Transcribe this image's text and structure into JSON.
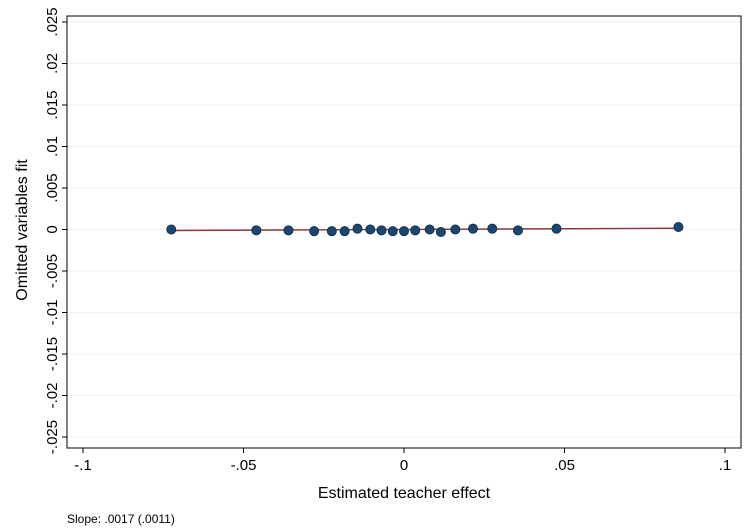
{
  "chart_data": {
    "type": "scatter",
    "title": "",
    "xlabel": "Estimated teacher effect",
    "ylabel": "Omitted variables fit",
    "xlim": [
      -0.1,
      0.1
    ],
    "ylim": [
      -0.025,
      0.025
    ],
    "x_ticks": [
      -0.1,
      -0.05,
      0,
      0.05,
      0.1
    ],
    "x_tick_labels": [
      "-.1",
      "-.05",
      "0",
      ".05",
      ".1"
    ],
    "y_ticks": [
      -0.025,
      -0.02,
      -0.015,
      -0.01,
      -0.005,
      0,
      0.005,
      0.01,
      0.015,
      0.02,
      0.025
    ],
    "y_tick_labels": [
      "-.025",
      "-.02",
      "-.015",
      "-.01",
      "-.005",
      "0",
      ".005",
      ".01",
      ".015",
      ".02",
      ".025"
    ],
    "grid": true,
    "legend": "none",
    "series": [
      {
        "kind": "points",
        "color": "#1a476f",
        "x": [
          -0.0725,
          -0.046,
          -0.036,
          -0.028,
          -0.0225,
          -0.0185,
          -0.0145,
          -0.0105,
          -0.007,
          -0.0035,
          0.0,
          0.0035,
          0.008,
          0.0115,
          0.016,
          0.0215,
          0.0275,
          0.0355,
          0.0475,
          0.0855
        ],
        "y": [
          0.0,
          -0.0001,
          -0.0001,
          -0.0002,
          -0.0002,
          -0.0002,
          0.0001,
          0.0,
          -0.0001,
          -0.0002,
          -0.0002,
          -0.0001,
          0.0,
          -0.0003,
          0.0,
          0.0001,
          0.0001,
          -0.0001,
          0.0001,
          0.0003
        ]
      },
      {
        "kind": "fit-line",
        "color": "#90353b",
        "x": [
          -0.0725,
          0.0855
        ],
        "y": [
          -0.00012,
          0.00015
        ]
      }
    ],
    "note": "Slope: .0017 (.0011)"
  }
}
